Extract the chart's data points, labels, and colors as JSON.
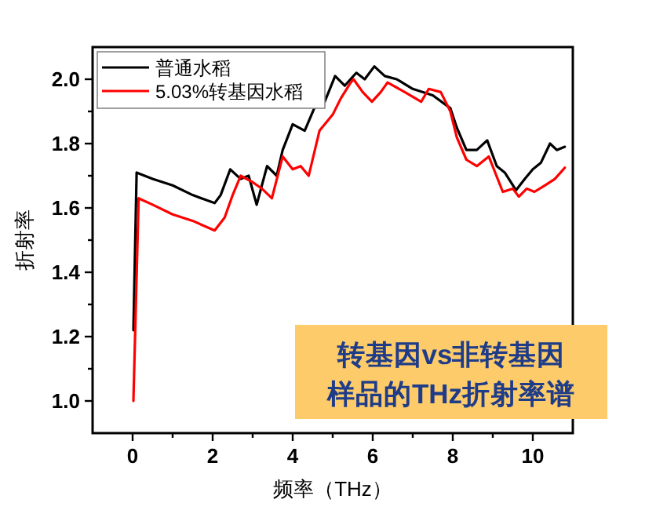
{
  "chart_data": {
    "type": "line",
    "xlabel": "频率（THz）",
    "ylabel": "折射率",
    "annotations": [
      "转基因vs非转基因",
      "样品的THz折射率谱"
    ],
    "xlim": [
      -1,
      11
    ],
    "ylim": [
      0.9,
      2.1
    ],
    "xticks": [
      0,
      {
        "value": 1,
        "label": null
      },
      2,
      {
        "value": 3,
        "label": null
      },
      4,
      {
        "value": 5,
        "label": null
      },
      6,
      {
        "value": 7,
        "label": null
      },
      8,
      {
        "value": 9,
        "label": null
      },
      10
    ],
    "yticks": [
      {
        "value": 1.0,
        "label": "1.0"
      },
      {
        "value": 1.1,
        "label": null
      },
      {
        "value": 1.2,
        "label": "1.2"
      },
      {
        "value": 1.3,
        "label": null
      },
      {
        "value": 1.4,
        "label": "1.4"
      },
      {
        "value": 1.5,
        "label": null
      },
      {
        "value": 1.6,
        "label": "1.6"
      },
      {
        "value": 1.7,
        "label": null
      },
      {
        "value": 1.8,
        "label": "1.8"
      },
      {
        "value": 1.9,
        "label": null
      },
      {
        "value": 2.0,
        "label": "2.0"
      }
    ],
    "legend": "top left",
    "grid": false,
    "marker": "none",
    "line_style": "solid",
    "series": [
      {
        "name": "普通水稻",
        "color": "#000000",
        "x": [
          0.02,
          0.1,
          0.5,
          1.0,
          1.5,
          2.05,
          2.2,
          2.44,
          2.7,
          2.9,
          3.1,
          3.36,
          3.6,
          3.75,
          4.0,
          4.3,
          4.54,
          4.8,
          5.06,
          5.3,
          5.59,
          5.8,
          6.04,
          6.3,
          6.6,
          7.0,
          7.5,
          7.94,
          8.1,
          8.34,
          8.6,
          8.86,
          9.1,
          9.3,
          9.58,
          9.8,
          10.0,
          10.2,
          10.43,
          10.6,
          10.8
        ],
        "values": [
          1.22,
          1.71,
          1.69,
          1.67,
          1.64,
          1.615,
          1.64,
          1.72,
          1.69,
          1.7,
          1.61,
          1.73,
          1.7,
          1.78,
          1.86,
          1.84,
          1.91,
          1.93,
          2.01,
          1.98,
          2.02,
          2.0,
          2.04,
          2.01,
          2.0,
          1.97,
          1.95,
          1.91,
          1.85,
          1.78,
          1.78,
          1.81,
          1.73,
          1.71,
          1.655,
          1.69,
          1.72,
          1.74,
          1.8,
          1.78,
          1.79
        ]
      },
      {
        "name": "5.03%转基因水稻",
        "color": "#ff0000",
        "x": [
          0.02,
          0.15,
          0.5,
          1.0,
          1.5,
          2.05,
          2.3,
          2.5,
          2.7,
          3.0,
          3.23,
          3.48,
          3.75,
          4.0,
          4.2,
          4.4,
          4.67,
          5.0,
          5.2,
          5.45,
          5.52,
          5.75,
          5.98,
          6.2,
          6.37,
          6.8,
          7.21,
          7.4,
          7.7,
          7.94,
          8.1,
          8.34,
          8.6,
          8.9,
          9.25,
          9.5,
          9.65,
          9.85,
          10.04,
          10.3,
          10.55,
          10.8
        ],
        "values": [
          1.0,
          1.63,
          1.61,
          1.58,
          1.56,
          1.53,
          1.57,
          1.64,
          1.7,
          1.68,
          1.66,
          1.63,
          1.76,
          1.72,
          1.73,
          1.7,
          1.84,
          1.89,
          1.94,
          1.99,
          2.0,
          1.96,
          1.93,
          1.96,
          1.99,
          1.96,
          1.93,
          1.97,
          1.96,
          1.9,
          1.82,
          1.75,
          1.73,
          1.76,
          1.65,
          1.66,
          1.635,
          1.66,
          1.65,
          1.67,
          1.69,
          1.725
        ]
      }
    ]
  }
}
